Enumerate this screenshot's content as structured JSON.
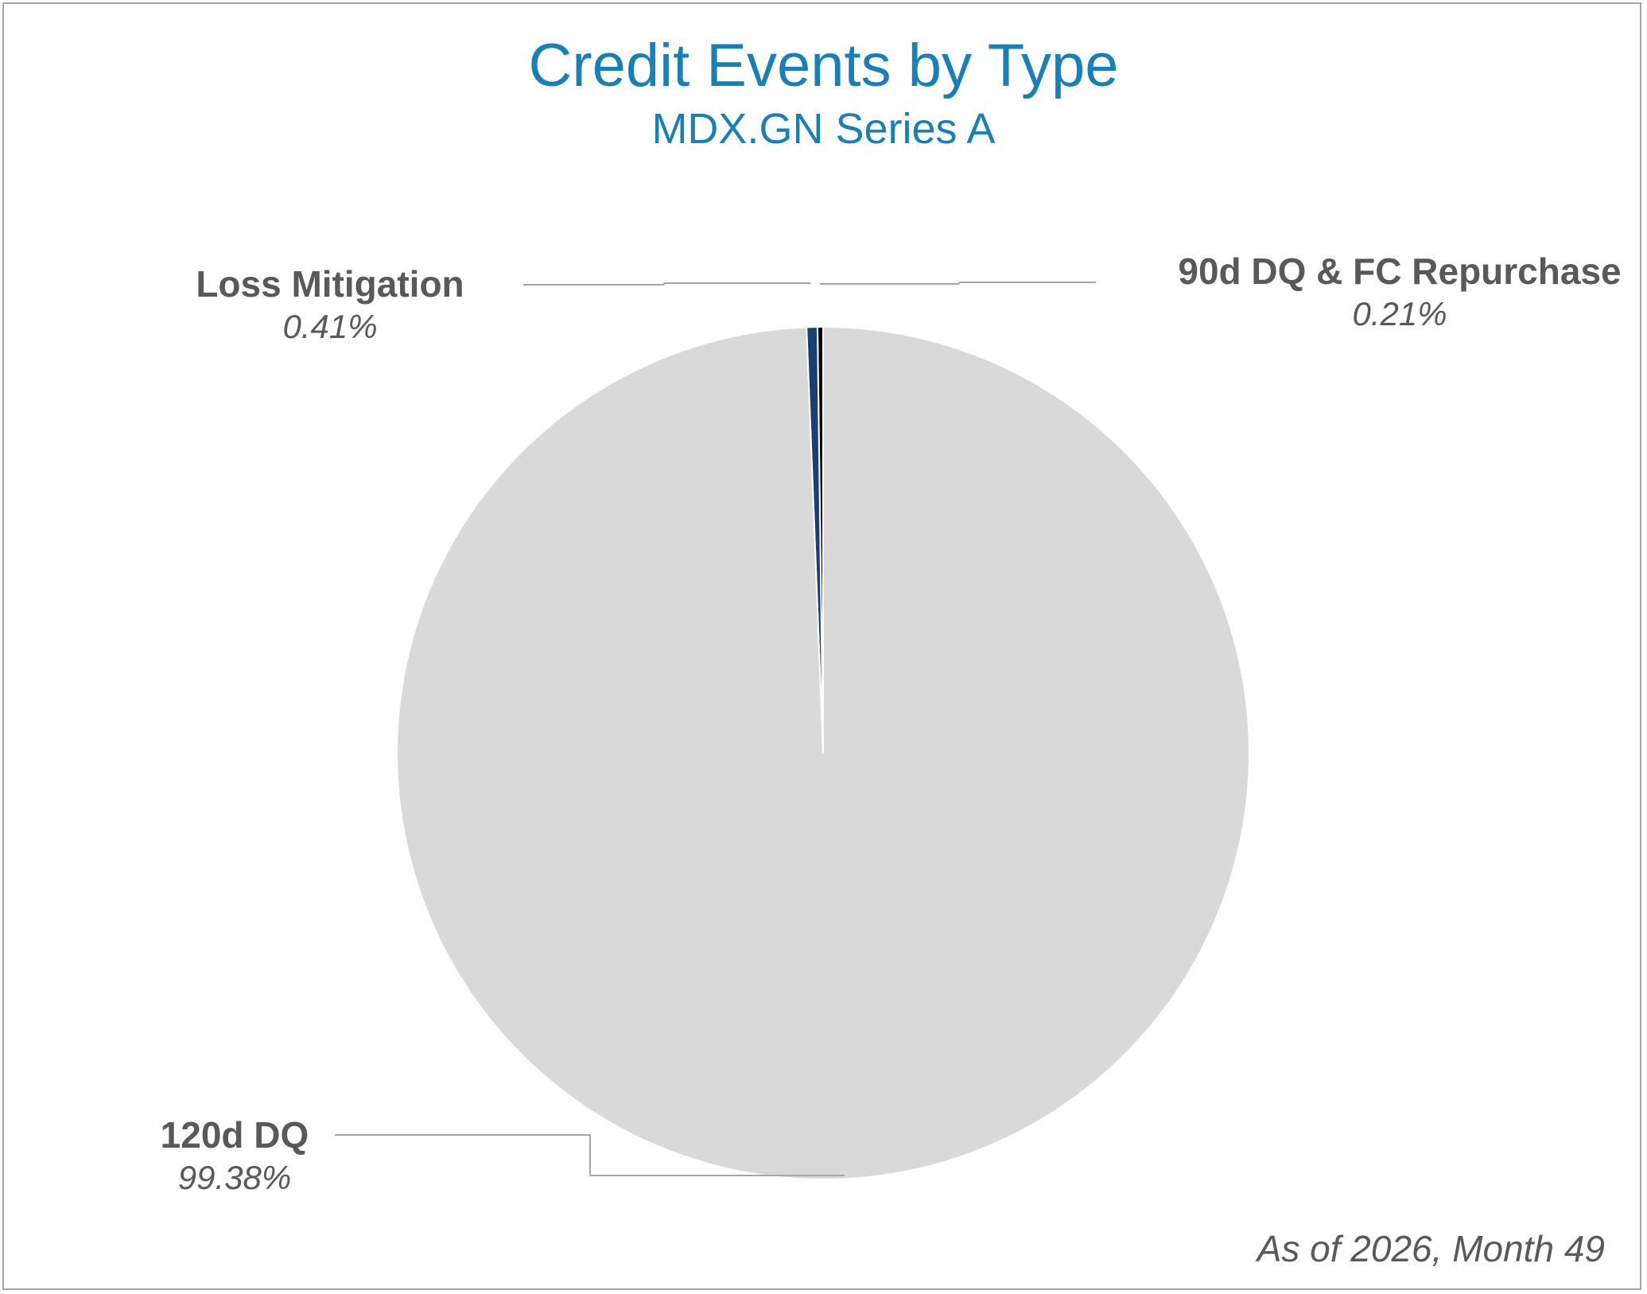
{
  "chart_data": {
    "type": "pie",
    "title": "Credit Events by Type",
    "subtitle": "MDX.GN Series A",
    "slices": [
      {
        "label": "90d DQ & FC Repurchase",
        "value": 0.21,
        "value_label": "0.21%",
        "color": "#0a0a0a"
      },
      {
        "label": "Loss Mitigation",
        "value": 0.41,
        "value_label": "0.41%",
        "color": "#1c3f73"
      },
      {
        "label": "120d DQ",
        "value": 99.38,
        "value_label": "99.38%",
        "color": "#d9d9d9"
      }
    ],
    "start_direction": "top",
    "slice_order": "counter-clockwise",
    "data_labels": "outside with leader lines",
    "legend": "none",
    "footnote": "As of  2026, Month 49"
  },
  "colors": {
    "title": "#1a7fb5",
    "label_text": "#595959",
    "leader_line": "#a6a6a6",
    "frame": "#a6a6a6"
  }
}
